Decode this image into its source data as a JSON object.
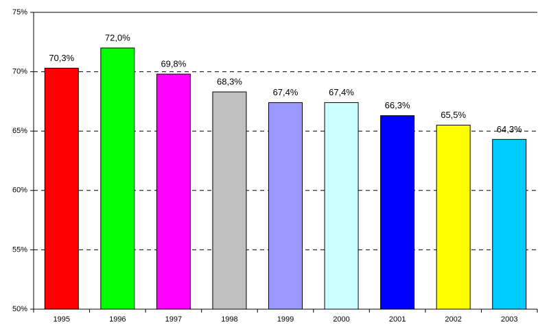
{
  "chart_data": {
    "type": "bar",
    "categories": [
      "1995",
      "1996",
      "1997",
      "1998",
      "1999",
      "2000",
      "2001",
      "2002",
      "2003"
    ],
    "values": [
      70.3,
      72.0,
      69.8,
      68.3,
      67.4,
      67.4,
      66.3,
      65.5,
      64.3
    ],
    "value_labels": [
      "70,3%",
      "72,0%",
      "69,8%",
      "68,3%",
      "67,4%",
      "67,4%",
      "66,3%",
      "65,5%",
      "64,3%"
    ],
    "colors": [
      "#ff0000",
      "#00ff00",
      "#ff00ff",
      "#c0c0c0",
      "#9999ff",
      "#ccffff",
      "#0000ff",
      "#ffff00",
      "#00ccff"
    ],
    "ylim": [
      50,
      75
    ],
    "yticks": [
      {
        "value": 50,
        "label": "50%"
      },
      {
        "value": 55,
        "label": "55%"
      },
      {
        "value": 60,
        "label": "60%"
      },
      {
        "value": 65,
        "label": "65%"
      },
      {
        "value": 70,
        "label": "70%"
      },
      {
        "value": 75,
        "label": "75%"
      }
    ],
    "grid": true
  }
}
